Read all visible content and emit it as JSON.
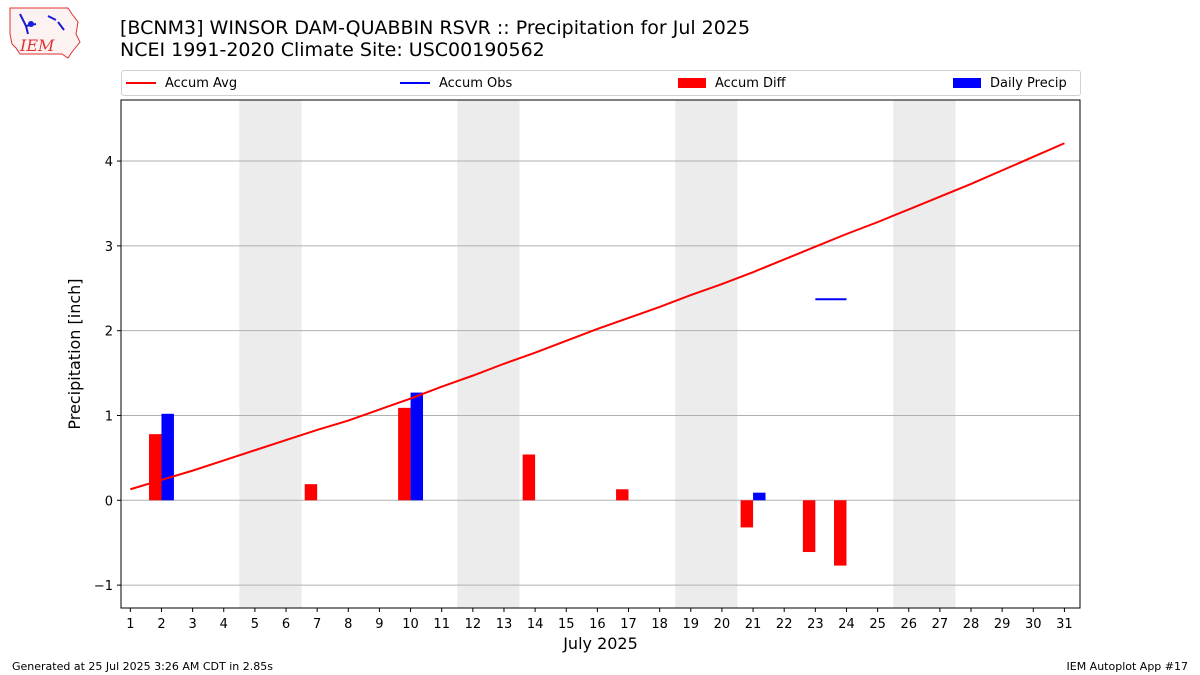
{
  "header": {
    "title_line1": "[BCNM3] WINSOR DAM-QUABBIN RSVR :: Precipitation for Jul 2025",
    "title_line2": "NCEI 1991-2020 Climate Site: USC00190562",
    "logo_text": "IEM"
  },
  "footer": {
    "left": "Generated at 25 Jul 2025 3:26 AM CDT in 2.85s",
    "right": "IEM Autoplot App #17"
  },
  "colors": {
    "accum_avg": "#ff0000",
    "accum_obs": "#0000ff",
    "accum_diff": "#ff0000",
    "daily_precip": "#0000ff",
    "weekend_shade": "#ececec",
    "grid": "#b0b0b0"
  },
  "chart_data": {
    "type": "bar",
    "xlabel": "July 2025",
    "ylabel": "Precipitation [inch]",
    "xlim": [
      0.7,
      31.5
    ],
    "ylim": [
      -1.27,
      4.72
    ],
    "x_ticks": [
      1,
      2,
      3,
      4,
      5,
      6,
      7,
      8,
      9,
      10,
      11,
      12,
      13,
      14,
      15,
      16,
      17,
      18,
      19,
      20,
      21,
      22,
      23,
      24,
      25,
      26,
      27,
      28,
      29,
      30,
      31
    ],
    "y_ticks": [
      -1,
      0,
      1,
      2,
      3,
      4
    ],
    "y_tick_labels": [
      "−1",
      "0",
      "1",
      "2",
      "3",
      "4"
    ],
    "grid": "horizontal",
    "legend_position": "top",
    "weekend_shading_days": [
      [
        5,
        6
      ],
      [
        12,
        13
      ],
      [
        19,
        20
      ],
      [
        26,
        27
      ]
    ],
    "legend": {
      "accum_avg": "Accum Avg",
      "accum_obs": "Accum Obs",
      "accum_diff": "Accum Diff",
      "daily_precip": "Daily Precip"
    },
    "series": [
      {
        "name": "Accum Avg",
        "type": "line",
        "x": [
          1,
          2,
          3,
          4,
          5,
          6,
          7,
          8,
          9,
          10,
          11,
          12,
          13,
          14,
          15,
          16,
          17,
          18,
          19,
          20,
          21,
          22,
          23,
          24,
          25,
          26,
          27,
          28,
          29,
          30,
          31
        ],
        "values": [
          0.13,
          0.24,
          0.35,
          0.47,
          0.59,
          0.71,
          0.83,
          0.94,
          1.07,
          1.2,
          1.34,
          1.47,
          1.61,
          1.74,
          1.88,
          2.02,
          2.15,
          2.28,
          2.42,
          2.55,
          2.69,
          2.84,
          2.99,
          3.14,
          3.28,
          3.43,
          3.58,
          3.73,
          3.89,
          4.05,
          4.21
        ]
      },
      {
        "name": "Accum Obs",
        "type": "line",
        "x": [
          23,
          24
        ],
        "values": [
          2.37,
          2.37
        ]
      },
      {
        "name": "Accum Diff",
        "type": "bar",
        "x": [
          2,
          7,
          10,
          14,
          17,
          21,
          23,
          24
        ],
        "values": [
          0.78,
          0.19,
          1.09,
          0.54,
          0.13,
          -0.32,
          -0.61,
          -0.77
        ]
      },
      {
        "name": "Daily Precip",
        "type": "bar",
        "x": [
          2,
          10,
          21
        ],
        "values": [
          1.02,
          1.27,
          0.09
        ]
      }
    ]
  }
}
